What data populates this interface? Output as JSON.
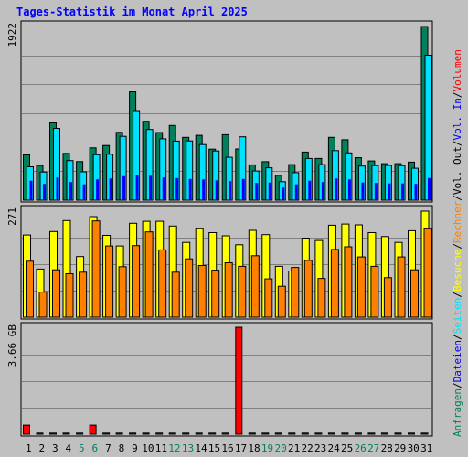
{
  "title": "Tages-Statistik im Monat April 2025",
  "colors": {
    "background": "#c0c0c0",
    "plot_background": "#c0c0c0",
    "grid": "#808080",
    "title": "#0000ff",
    "hits": "#00805c",
    "files": "#00e0ff",
    "pages": "#0000ff",
    "visits": "#ffff00",
    "sites": "#ff8000",
    "kbytes": "#ff0000",
    "weekend_label": "#00805c",
    "weekday_label": "#000000"
  },
  "legend": {
    "parts": [
      {
        "text": "Anfragen",
        "color": "#00805c"
      },
      {
        "text": "/",
        "color": "#000000"
      },
      {
        "text": "Dateien",
        "color": "#0000ff"
      },
      {
        "text": "/",
        "color": "#000000"
      },
      {
        "text": "Seiten",
        "color": "#00e0ff"
      },
      {
        "text": "/",
        "color": "#000000"
      },
      {
        "text": "Besuche",
        "color": "#ffff00"
      },
      {
        "text": "/",
        "color": "#000000"
      },
      {
        "text": "Rechner",
        "color": "#ff8000"
      },
      {
        "text": "/",
        "color": "#000000"
      },
      {
        "text": "Vol. Out",
        "color": "#000000"
      },
      {
        "text": "/",
        "color": "#000000"
      },
      {
        "text": "Vol. In",
        "color": "#0000ff"
      },
      {
        "text": "/",
        "color": "#000000"
      },
      {
        "text": "Volumen",
        "color": "#ff0000"
      }
    ]
  },
  "chart_data": {
    "type": "bar",
    "title": "Tages-Statistik im Monat April 2025",
    "categories": [
      "1",
      "2",
      "3",
      "4",
      "5",
      "6",
      "7",
      "8",
      "9",
      "10",
      "11",
      "12",
      "13",
      "14",
      "15",
      "16",
      "17",
      "18",
      "19",
      "20",
      "21",
      "22",
      "23",
      "24",
      "25",
      "26",
      "27",
      "28",
      "29",
      "30",
      "31"
    ],
    "weekend_days": [
      "5",
      "6",
      "12",
      "13",
      "19",
      "20",
      "26",
      "27"
    ],
    "panels": [
      {
        "id": "requests",
        "max_label": "1922",
        "ylim": [
          0,
          1922
        ],
        "series": [
          {
            "name": "Anfragen",
            "color": "#00805c",
            "values": [
              502,
              384,
              856,
              518,
              427,
              579,
              605,
              751,
              1199,
              873,
              749,
              826,
              695,
              717,
              564,
              724,
              566,
              390,
              426,
              275,
              393,
              532,
              461,
              695,
              669,
              470,
              434,
              404,
              404,
              421,
              1922
            ]
          },
          {
            "name": "Dateien",
            "color": "#00e0ff",
            "values": [
              369,
              312,
              794,
              438,
              314,
              503,
              508,
              706,
              991,
              782,
              679,
              653,
              655,
              615,
              544,
              474,
              701,
              323,
              358,
              204,
              304,
              461,
              393,
              548,
              523,
              377,
              382,
              384,
              382,
              353,
              1603
            ]
          },
          {
            "name": "Seiten",
            "color": "#0000ff",
            "values": [
              215,
              180,
              250,
              200,
              175,
              230,
              240,
              265,
              280,
              270,
              250,
              245,
              235,
              230,
              220,
              210,
              235,
              190,
              195,
              140,
              175,
              215,
              200,
              240,
              230,
              195,
              190,
              185,
              185,
              180,
              245
            ]
          }
        ]
      },
      {
        "id": "visits",
        "max_label": "271",
        "ylim": [
          0,
          271
        ],
        "series": [
          {
            "name": "Besuche",
            "color": "#ffff00",
            "values": [
              210,
              123,
              219,
              247,
              155,
              257,
              209,
              182,
              240,
              245,
              245,
              233,
              191,
              226,
              216,
              208,
              185,
              222,
              211,
              130,
              118,
              202,
              196,
              235,
              238,
              236,
              216,
              206,
              191,
              221,
              271
            ]
          },
          {
            "name": "Rechner",
            "color": "#ff8000",
            "values": [
              143,
              64,
              121,
              111,
              115,
              246,
              182,
              129,
              183,
              218,
              172,
              115,
              149,
              132,
              120,
              139,
              130,
              157,
              98,
              79,
              127,
              145,
              99,
              173,
              180,
              154,
              130,
              101,
              154,
              121,
              226
            ]
          }
        ]
      },
      {
        "id": "volume",
        "max_label": "3.66 GB",
        "ylim": [
          0,
          3.66
        ],
        "unit": "GB",
        "series": [
          {
            "name": "Volumen",
            "color": "#ff0000",
            "values": [
              0.31,
              0.0,
              0.0,
              0.0,
              0.0,
              0.31,
              0.0,
              0.0,
              0.0,
              0.0,
              0.0,
              0.0,
              0.0,
              0.0,
              0.0,
              0.0,
              3.66,
              0.0,
              0.0,
              0.0,
              0.0,
              0.0,
              0.0,
              0.0,
              0.0,
              0.0,
              0.0,
              0.0,
              0.0,
              0.0,
              0.0
            ]
          }
        ]
      }
    ],
    "grid": true,
    "legend_placement": "right, vertical"
  }
}
